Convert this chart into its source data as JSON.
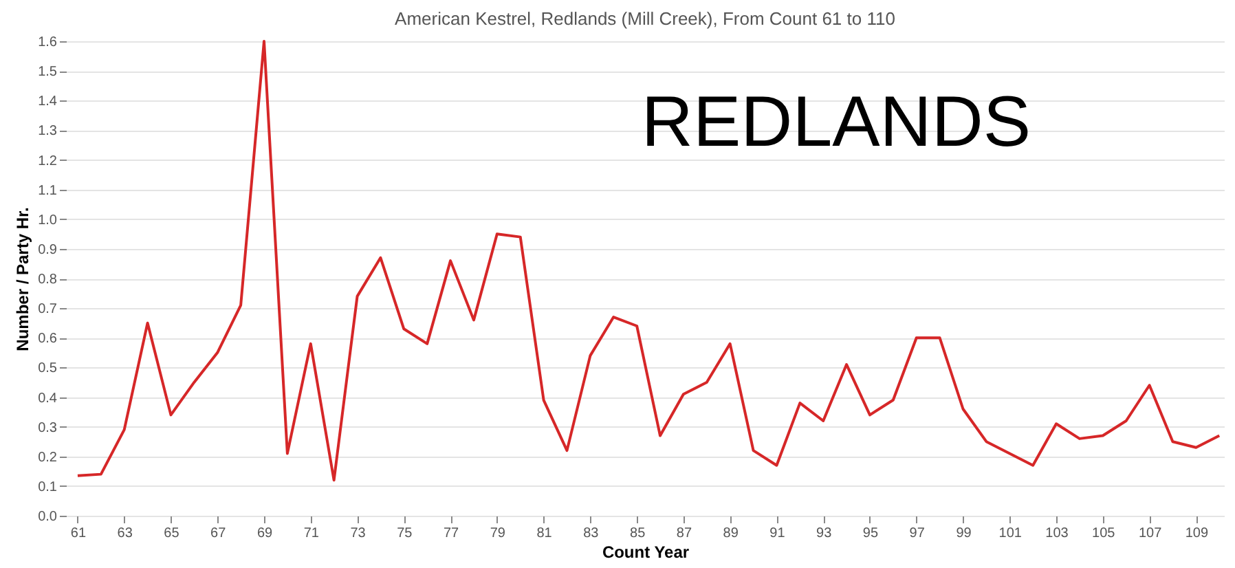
{
  "chart_data": {
    "type": "line",
    "title": "American Kestrel, Redlands (Mill Creek),  From Count 61 to 110",
    "xlabel": "Count Year",
    "ylabel": "Number / Party Hr.",
    "x": [
      61,
      62,
      63,
      64,
      65,
      66,
      67,
      68,
      69,
      70,
      71,
      72,
      73,
      74,
      75,
      76,
      77,
      78,
      79,
      80,
      81,
      82,
      83,
      84,
      85,
      86,
      87,
      88,
      89,
      90,
      91,
      92,
      93,
      94,
      95,
      96,
      97,
      98,
      99,
      100,
      101,
      102,
      103,
      104,
      105,
      106,
      107,
      108,
      109,
      110
    ],
    "series": [
      {
        "color": "#d62728",
        "values": [
          0.135,
          0.14,
          0.29,
          0.65,
          0.34,
          0.45,
          0.55,
          0.71,
          1.6,
          0.21,
          0.58,
          0.12,
          0.74,
          0.87,
          0.63,
          0.58,
          0.86,
          0.66,
          0.95,
          0.94,
          0.39,
          0.22,
          0.54,
          0.67,
          0.64,
          0.27,
          0.41,
          0.45,
          0.58,
          0.22,
          0.17,
          0.38,
          0.32,
          0.51,
          0.34,
          0.39,
          0.6,
          0.6,
          0.36,
          0.25,
          0.21,
          0.17,
          0.31,
          0.26,
          0.27,
          0.32,
          0.44,
          0.25,
          0.23,
          0.27
        ]
      }
    ],
    "xlim": [
      60.5,
      110.2
    ],
    "xticks": [
      61,
      63,
      65,
      67,
      69,
      71,
      73,
      75,
      77,
      79,
      81,
      83,
      85,
      87,
      89,
      91,
      93,
      95,
      97,
      99,
      101,
      103,
      105,
      107,
      109
    ],
    "ylim": [
      0,
      1.6
    ],
    "yticks": [
      {
        "value": 0,
        "label": "0.0"
      },
      0.1,
      0.2,
      0.3,
      0.4,
      0.5,
      0.6,
      0.7,
      0.8,
      0.9,
      {
        "value": 1,
        "label": "1.0"
      },
      1.1,
      1.2,
      1.3,
      1.4,
      1.5,
      1.6
    ],
    "grid": "y",
    "line_style": "solid",
    "marker": "none",
    "annotations": [
      "REDLANDS"
    ]
  }
}
